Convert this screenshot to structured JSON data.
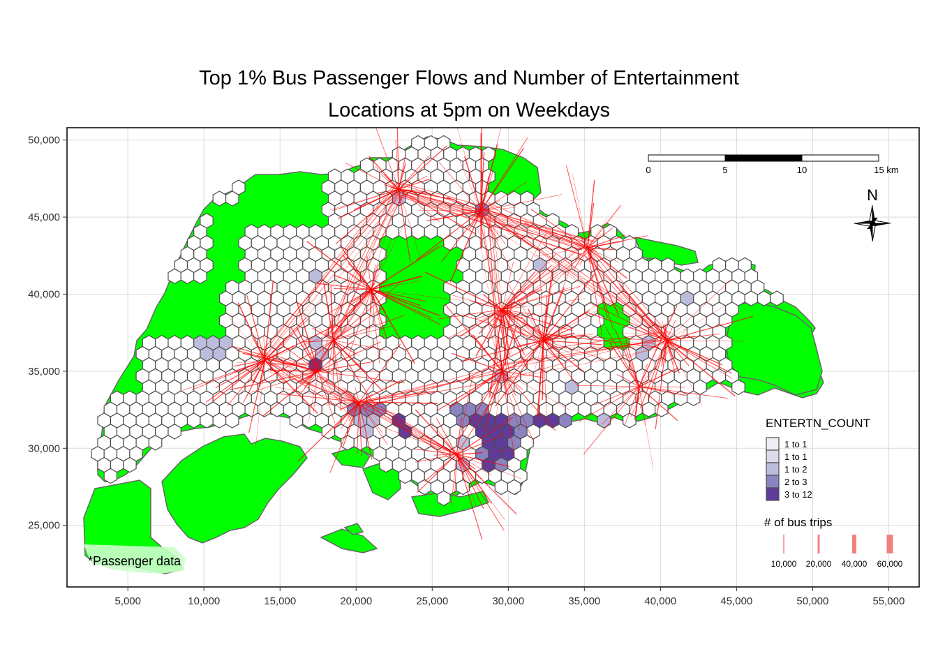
{
  "title": {
    "line1": "Top 1% Bus Passenger Flows and Number of Entertainment",
    "line2": "Locations at 5pm on Weekdays"
  },
  "axes": {
    "x_ticks": [
      "5,000",
      "10,000",
      "15,000",
      "20,000",
      "25,000",
      "30,000",
      "35,000",
      "40,000",
      "45,000",
      "50,000",
      "55,000"
    ],
    "y_ticks": [
      "25,000",
      "30,000",
      "35,000",
      "40,000",
      "45,000",
      "50,000"
    ],
    "x_values": [
      5000,
      10000,
      15000,
      20000,
      25000,
      30000,
      35000,
      40000,
      45000,
      50000,
      55000
    ],
    "y_values": [
      25000,
      30000,
      35000,
      40000,
      45000,
      50000
    ],
    "xlim": [
      1000,
      57000
    ],
    "ylim": [
      21000,
      50800
    ]
  },
  "scale_bar": {
    "labels": [
      "0",
      "5",
      "10",
      "15 km"
    ]
  },
  "north_arrow": {
    "label": "N"
  },
  "legend_fill": {
    "title": "ENTERTN_COUNT",
    "items": [
      {
        "label": "1 to 1",
        "color": "#efedf5"
      },
      {
        "label": "1 to 1",
        "color": "#dadaeb"
      },
      {
        "label": "1 to 2",
        "color": "#bcbddc"
      },
      {
        "label": "2 to 3",
        "color": "#8a84c0"
      },
      {
        "label": "3 to 12",
        "color": "#5e3c99"
      }
    ]
  },
  "legend_flow": {
    "title": "# of bus trips",
    "labels": [
      "10,000",
      "20,000",
      "40,000",
      "60,000"
    ],
    "values": [
      10000,
      20000,
      40000,
      60000
    ]
  },
  "credit": "*Passenger data",
  "colors": {
    "land": "#00ff00",
    "land_border": "#666666",
    "hex_border": "#4d4d4d",
    "hex_default": "#ffffff",
    "flow": "#ff0000",
    "grid": "#d9d9d9"
  },
  "hub_points": [
    {
      "x": 14000,
      "y": 35700
    },
    {
      "x": 17500,
      "y": 35000
    },
    {
      "x": 18500,
      "y": 37000
    },
    {
      "x": 20200,
      "y": 33000
    },
    {
      "x": 22800,
      "y": 46800
    },
    {
      "x": 28200,
      "y": 45400
    },
    {
      "x": 29600,
      "y": 35000
    },
    {
      "x": 29600,
      "y": 39000
    },
    {
      "x": 32300,
      "y": 37000
    },
    {
      "x": 35200,
      "y": 43000
    },
    {
      "x": 40400,
      "y": 37000
    },
    {
      "x": 38600,
      "y": 34000
    },
    {
      "x": 26600,
      "y": 29600
    },
    {
      "x": 21000,
      "y": 40300
    }
  ]
}
